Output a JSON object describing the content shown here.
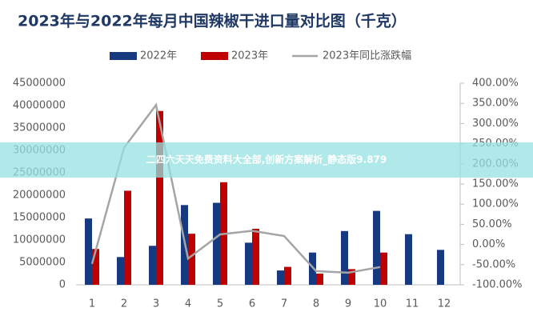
{
  "chart_data": {
    "type": "bar_line",
    "title": "2023年与2022年每月中国辣椒干进口量对比图（千克）",
    "categories": [
      "1",
      "2",
      "3",
      "4",
      "5",
      "6",
      "7",
      "8",
      "9",
      "10",
      "11",
      "12"
    ],
    "series": [
      {
        "name": "2022年",
        "color": "#17397f",
        "type": "bar",
        "values": [
          14800000,
          6200000,
          8700000,
          17800000,
          18300000,
          9400000,
          3200000,
          7200000,
          12000000,
          16500000,
          11300000,
          7800000
        ]
      },
      {
        "name": "2023年",
        "color": "#c00000",
        "type": "bar",
        "values": [
          8000000,
          21000000,
          38800000,
          11400000,
          22900000,
          12500000,
          4000000,
          2500000,
          3500000,
          7200000,
          null,
          null
        ]
      },
      {
        "name": "2023年同比涨跌幅",
        "color": "#a5a5a5",
        "type": "line",
        "axis": "y2",
        "values": [
          -48,
          240,
          346,
          -35,
          25,
          34,
          21,
          -66,
          -70,
          -56,
          null,
          null
        ]
      }
    ],
    "ylim": [
      0,
      45000000
    ],
    "yticks": [
      0,
      5000000,
      10000000,
      15000000,
      20000000,
      25000000,
      30000000,
      35000000,
      40000000,
      45000000
    ],
    "y2lim": [
      -100,
      400
    ],
    "y2ticks": [
      {
        "value": -100,
        "label": "-100.00%"
      },
      {
        "value": -50,
        "label": "-50.00%"
      },
      {
        "value": 0,
        "label": "0.00%"
      },
      {
        "value": 50,
        "label": "50.00%"
      },
      {
        "value": 100,
        "label": "100.00%"
      },
      {
        "value": 150,
        "label": "150.00%"
      },
      {
        "value": 200,
        "label": "200.00%"
      },
      {
        "value": 250,
        "label": "250.00%"
      },
      {
        "value": 300,
        "label": "300.00%"
      },
      {
        "value": 350,
        "label": "350.00%"
      },
      {
        "value": 400,
        "label": "400.00%"
      }
    ],
    "grid": false,
    "legend": "top"
  },
  "banner": {
    "text": "二四六天天免费资料大全部,创新方案解析_静态版9.879"
  }
}
